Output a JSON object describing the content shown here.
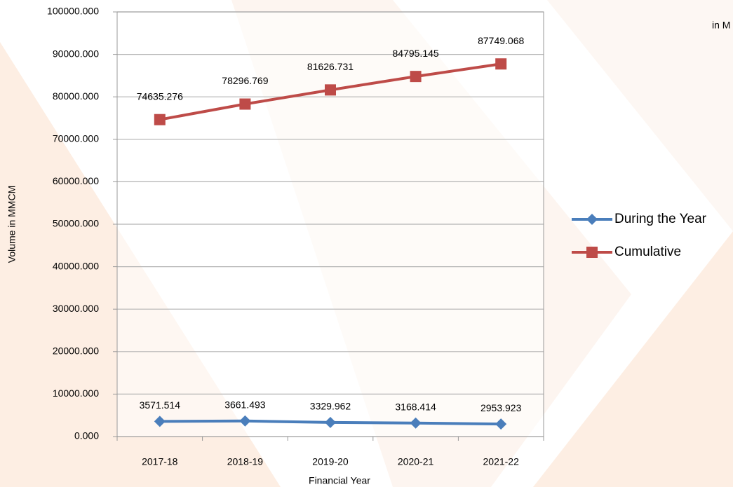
{
  "chart_data": {
    "type": "line",
    "x_label": "Financial Year",
    "y_label": "Volume in MMCM",
    "annotation": "in M",
    "categories": [
      "2017-18",
      "2018-19",
      "2019-20",
      "2020-21",
      "2021-22"
    ],
    "series": [
      {
        "name": "During the Year",
        "color": "#4a7ebb",
        "marker": "diamond",
        "values": [
          3571.514,
          3661.493,
          3329.962,
          3168.414,
          2953.923
        ]
      },
      {
        "name": "Cumulative",
        "color": "#be4b48",
        "marker": "square",
        "values": [
          74635.276,
          78296.769,
          81626.731,
          84795.145,
          87749.068
        ]
      }
    ],
    "ylim": [
      0,
      100000
    ],
    "yticks": [
      {
        "value": 0,
        "label": "0.000"
      },
      {
        "value": 10000,
        "label": "10000.000"
      },
      {
        "value": 20000,
        "label": "20000.000"
      },
      {
        "value": 30000,
        "label": "30000.000"
      },
      {
        "value": 40000,
        "label": "40000.000"
      },
      {
        "value": 50000,
        "label": "50000.000"
      },
      {
        "value": 60000,
        "label": "60000.000"
      },
      {
        "value": 70000,
        "label": "70000.000"
      },
      {
        "value": 80000,
        "label": "80000.000"
      },
      {
        "value": 90000,
        "label": "90000.000"
      },
      {
        "value": 100000,
        "label": "100000.000"
      }
    ],
    "grid": true,
    "legend": "right"
  }
}
